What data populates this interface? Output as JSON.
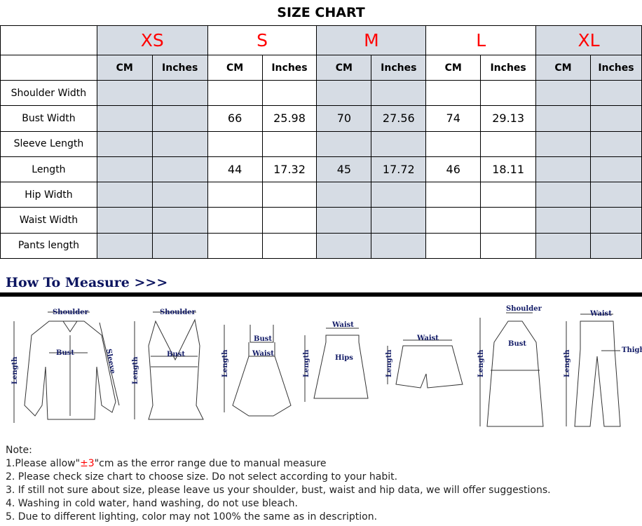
{
  "title": "SIZE CHART",
  "sizes": [
    "XS",
    "S",
    "M",
    "L",
    "XL"
  ],
  "units": [
    "CM",
    "Inches"
  ],
  "shaded_color": "#d6dce4",
  "size_color": "#ff0000",
  "rows": [
    {
      "label": "Shoulder Width",
      "values": [
        "",
        "",
        "",
        "",
        "",
        "",
        "",
        "",
        "",
        ""
      ]
    },
    {
      "label": "Bust Width",
      "values": [
        "",
        "",
        "66",
        "25.98",
        "70",
        "27.56",
        "74",
        "29.13",
        "",
        ""
      ]
    },
    {
      "label": "Sleeve Length",
      "values": [
        "",
        "",
        "",
        "",
        "",
        "",
        "",
        "",
        "",
        ""
      ]
    },
    {
      "label": "Length",
      "values": [
        "",
        "",
        "44",
        "17.32",
        "45",
        "17.72",
        "46",
        "18.11",
        "",
        ""
      ]
    },
    {
      "label": "Hip Width",
      "values": [
        "",
        "",
        "",
        "",
        "",
        "",
        "",
        "",
        "",
        ""
      ]
    },
    {
      "label": "Waist Width",
      "values": [
        "",
        "",
        "",
        "",
        "",
        "",
        "",
        "",
        "",
        ""
      ]
    },
    {
      "label": "Pants length",
      "values": [
        "",
        "",
        "",
        "",
        "",
        "",
        "",
        "",
        "",
        ""
      ]
    }
  ],
  "how_to_measure": "How To Measure >>>",
  "diagram_labels": {
    "shoulder": "Shoulder",
    "bust": "Bust",
    "sleeve": "Sleeve",
    "length": "Length",
    "waist": "Waist",
    "hips": "Hips",
    "thigh": "Thigh"
  },
  "notes": {
    "heading": "Note:",
    "n1_pre": "1.Please allow\"",
    "n1_red": "±3",
    "n1_post": "\"cm as the error range due to manual measure",
    "n2": "2. Please check size chart to choose size. Do not select according to your habit.",
    "n3": "3. If still not sure about size, please leave us your shoulder, bust, waist and hip data, we will offer suggestions.",
    "n4": "4. Washing in cold water, hand washing, do not use bleach.",
    "n5": "5. Due to different lighting, color may not 100% the same as in description."
  }
}
